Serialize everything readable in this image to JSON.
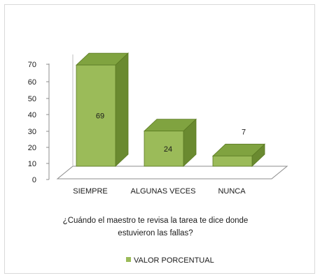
{
  "chart_data": {
    "type": "bar",
    "categories": [
      "SIEMPRE",
      "ALGUNAS VECES",
      "NUNCA"
    ],
    "series": [
      {
        "name": "VALOR PORCENTUAL",
        "values": [
          69,
          24,
          7
        ]
      }
    ],
    "data_labels": [
      "69",
      "24",
      "7"
    ],
    "axis_title_lines": [
      "¿Cuándo el maestro te revisa la tarea te dice donde",
      "estuvieron las fallas?"
    ],
    "ylim": [
      0,
      70
    ],
    "yticks": [
      0,
      10,
      20,
      30,
      40,
      50,
      60,
      70
    ],
    "legend_position": "bottom",
    "colors": {
      "front": "#9bbb59",
      "top": "#80a340",
      "side": "#6a8a30",
      "edge": "#5a7a22",
      "floor": "#ffffff",
      "floor_edge": "#8c8c8c"
    }
  }
}
